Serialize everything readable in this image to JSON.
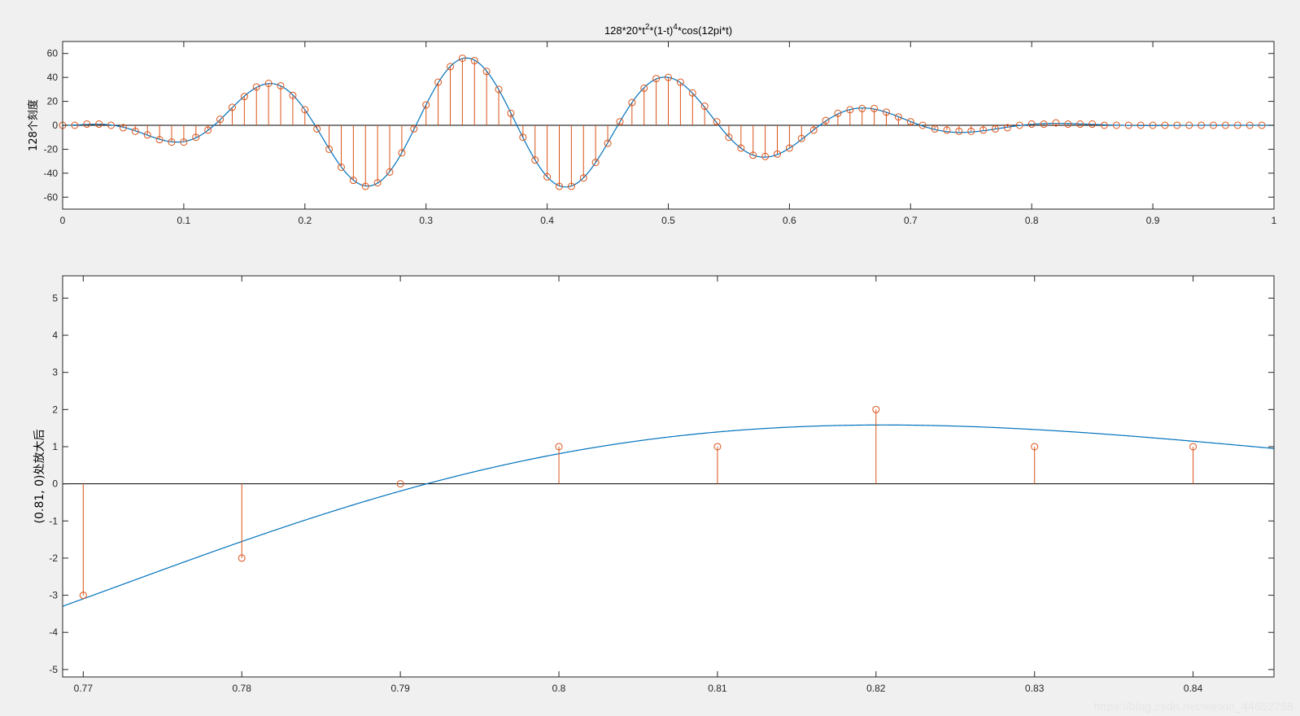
{
  "figure": {
    "background": "#f0f0f0",
    "watermark": "https://blog.csdn.net/weixin_44652758"
  },
  "chart_data": [
    {
      "type": "line",
      "subtype": "stem-with-continuous-curve",
      "title_parts": [
        "128*20*t",
        "2",
        "*(1-t)",
        "4",
        "*cos(12pi*t)"
      ],
      "xlabel": "",
      "ylabel": "128个刻度",
      "xlim": [
        0,
        1
      ],
      "ylim": [
        -70,
        70
      ],
      "xticks": [
        0,
        0.1,
        0.2,
        0.3,
        0.4,
        0.5,
        0.6,
        0.7,
        0.8,
        0.9,
        1
      ],
      "xtick_labels": [
        "0",
        "0.1",
        "0.2",
        "0.3",
        "0.4",
        "0.5",
        "0.6",
        "0.7",
        "0.8",
        "0.9",
        "1"
      ],
      "yticks": [
        -60,
        -40,
        -20,
        0,
        20,
        40,
        60
      ],
      "ytick_labels": [
        "-60",
        "-40",
        "-20",
        "0",
        "20",
        "40",
        "60"
      ],
      "grid": false,
      "series": [
        {
          "kind": "curve",
          "color": "#0072bd",
          "formula": "128*20*t^2*(1-t)^4*cos(12*pi*t)",
          "x_range": [
            0,
            1
          ]
        },
        {
          "kind": "stem",
          "color": "#d95319",
          "x": [
            0,
            0.01,
            0.02,
            0.03,
            0.04,
            0.05,
            0.06,
            0.07,
            0.08,
            0.09,
            0.1,
            0.11,
            0.12,
            0.13,
            0.14,
            0.15,
            0.16,
            0.17,
            0.18,
            0.19,
            0.2,
            0.21,
            0.22,
            0.23,
            0.24,
            0.25,
            0.26,
            0.27,
            0.28,
            0.29,
            0.3,
            0.31,
            0.32,
            0.33,
            0.34,
            0.35,
            0.36,
            0.37,
            0.38,
            0.39,
            0.4,
            0.41,
            0.42,
            0.43,
            0.44,
            0.45,
            0.46,
            0.47,
            0.48,
            0.49,
            0.5,
            0.51,
            0.52,
            0.53,
            0.54,
            0.55,
            0.56,
            0.57,
            0.58,
            0.59,
            0.6,
            0.61,
            0.62,
            0.63,
            0.64,
            0.65,
            0.66,
            0.67,
            0.68,
            0.69,
            0.7,
            0.71,
            0.72,
            0.73,
            0.74,
            0.75,
            0.76,
            0.77,
            0.78,
            0.79,
            0.8,
            0.81,
            0.82,
            0.83,
            0.84,
            0.85,
            0.86,
            0.87,
            0.88,
            0.89,
            0.9,
            0.91,
            0.92,
            0.93,
            0.94,
            0.95,
            0.96,
            0.97,
            0.98,
            0.99
          ],
          "y": [
            0,
            0,
            1,
            1,
            0,
            -2,
            -5,
            -8,
            -12,
            -14,
            -14,
            -10,
            -4,
            5,
            15,
            24,
            32,
            35,
            33,
            25,
            13,
            -3,
            -20,
            -35,
            -46,
            -51,
            -48,
            -39,
            -23,
            -3,
            17,
            36,
            49,
            56,
            54,
            45,
            30,
            10,
            -10,
            -29,
            -43,
            -51,
            -51,
            -44,
            -31,
            -15,
            3,
            19,
            31,
            39,
            40,
            36,
            27,
            16,
            3,
            -10,
            -19,
            -25,
            -26,
            -24,
            -19,
            -11,
            -4,
            4,
            10,
            13,
            14,
            14,
            11,
            7,
            3,
            0,
            -3,
            -4,
            -5,
            -5,
            -4,
            -3,
            -2,
            0,
            1,
            1,
            2,
            1,
            1,
            1,
            0,
            0,
            0,
            0,
            0,
            0,
            0,
            0,
            0,
            0,
            0,
            0,
            0,
            0
          ]
        }
      ]
    },
    {
      "type": "line",
      "subtype": "stem-with-continuous-curve",
      "title": "",
      "xlabel": "",
      "ylabel": "(0.81, 0)处放大后",
      "xlim": [
        0.7687,
        0.8451
      ],
      "ylim": [
        -5.2,
        5.6
      ],
      "xticks": [
        0.77,
        0.78,
        0.79,
        0.8,
        0.81,
        0.82,
        0.83,
        0.84
      ],
      "xtick_labels": [
        "0.77",
        "0.78",
        "0.79",
        "0.8",
        "0.81",
        "0.82",
        "0.83",
        "0.84"
      ],
      "yticks": [
        -5,
        -4,
        -3,
        -2,
        -1,
        0,
        1,
        2,
        3,
        4,
        5
      ],
      "ytick_labels": [
        "-5",
        "-4",
        "-3",
        "-2",
        "-1",
        "0",
        "1",
        "2",
        "3",
        "4",
        "5"
      ],
      "grid": false,
      "series": [
        {
          "kind": "curve",
          "color": "#0072bd",
          "formula": "128*20*t^2*(1-t)^4*cos(12*pi*t)",
          "x_range": [
            0.7687,
            0.8451
          ]
        },
        {
          "kind": "stem",
          "color": "#d95319",
          "x": [
            0.77,
            0.78,
            0.79,
            0.8,
            0.81,
            0.82,
            0.83,
            0.84
          ],
          "y": [
            -3,
            -2,
            0,
            1,
            1,
            2,
            1,
            1
          ]
        }
      ]
    }
  ]
}
